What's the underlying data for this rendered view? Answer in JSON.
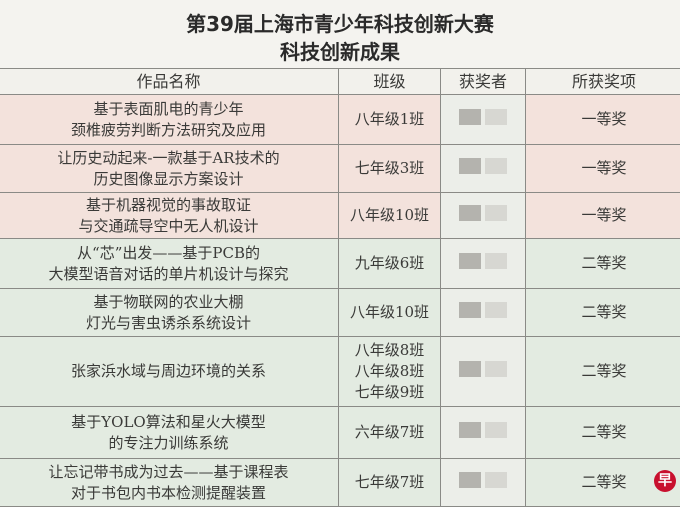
{
  "title_line1": "第39届上海市青少年科技创新大赛",
  "title_line2": "科技创新成果",
  "headers": [
    "作品名称",
    "班级",
    "获奖者",
    "所获奖项"
  ],
  "rows": [
    {
      "name_lines": [
        "基于表面肌电的青少年",
        "颈椎疲劳判断方法研究及应用"
      ],
      "class_lines": [
        "八年级1班"
      ],
      "award": "一等奖",
      "tier": "first"
    },
    {
      "name_lines": [
        "让历史动起来-一款基于AR技术的",
        "历史图像显示方案设计"
      ],
      "class_lines": [
        "七年级3班"
      ],
      "award": "一等奖",
      "tier": "first"
    },
    {
      "name_lines": [
        "基于机器视觉的事故取证",
        "与交通疏导空中无人机设计"
      ],
      "class_lines": [
        "八年级10班"
      ],
      "award": "一等奖",
      "tier": "first"
    },
    {
      "name_lines": [
        "从“芯”出发——基于PCB的",
        "大模型语音对话的单片机设计与探究"
      ],
      "class_lines": [
        "九年级6班"
      ],
      "award": "二等奖",
      "tier": "second"
    },
    {
      "name_lines": [
        "基于物联网的农业大棚",
        "灯光与害虫诱杀系统设计"
      ],
      "class_lines": [
        "八年级10班"
      ],
      "award": "二等奖",
      "tier": "second"
    },
    {
      "name_lines": [
        "张家浜水域与周边环境的关系"
      ],
      "class_lines": [
        "八年级8班",
        "八年级8班",
        "七年级9班"
      ],
      "award": "二等奖",
      "tier": "second"
    },
    {
      "name_lines": [
        "基于YOLO算法和星火大模型",
        "的专注力训练系统"
      ],
      "class_lines": [
        "六年级7班"
      ],
      "award": "二等奖",
      "tier": "second"
    },
    {
      "name_lines": [
        "让忘记带书成为过去——基于课程表",
        "对于书包内书本检测提醒装置"
      ],
      "class_lines": [
        "七年级7班"
      ],
      "award": "二等奖",
      "tier": "second"
    }
  ],
  "watermark_logo": "早",
  "colors": {
    "first_prize_row": "#f3e2dc",
    "second_prize_row": "#e3ebe1",
    "logo": "#c8102e"
  }
}
